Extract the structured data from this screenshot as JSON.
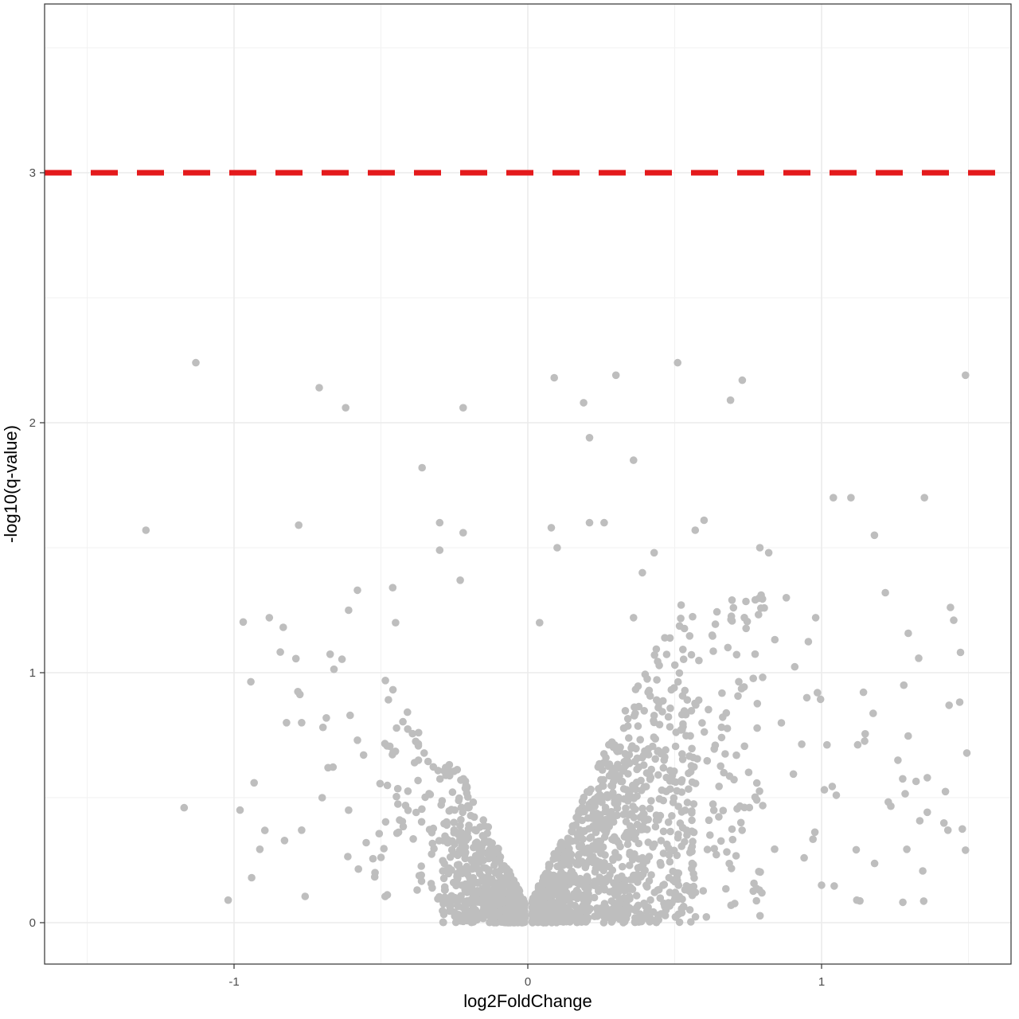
{
  "chart_data": {
    "type": "scatter",
    "title": "",
    "xlabel": "log2FoldChange",
    "ylabel": "-log10(q-value)",
    "xlim": [
      -1.65,
      1.65
    ],
    "ylim": [
      -0.16,
      3.5
    ],
    "x_ticks": [
      -1,
      0,
      1
    ],
    "x_tick_labels": [
      "-1",
      "0",
      "1"
    ],
    "y_ticks": [
      0,
      1,
      2,
      3
    ],
    "y_tick_labels": [
      "0",
      "1",
      "2",
      "3"
    ],
    "grid": true,
    "theme": "bw",
    "point_color": "#bebebe",
    "threshold_line": {
      "y": 3,
      "color": "#e41a1c",
      "style": "dashed"
    },
    "highlighted_points": [
      [
        -1.3,
        1.57
      ],
      [
        -1.13,
        2.24
      ],
      [
        -1.17,
        0.46
      ],
      [
        -1.02,
        0.09
      ],
      [
        -0.94,
        0.18
      ],
      [
        -0.88,
        1.22
      ],
      [
        -0.78,
        1.59
      ],
      [
        -0.77,
        0.8
      ],
      [
        -0.77,
        0.37
      ],
      [
        -0.71,
        2.14
      ],
      [
        -0.7,
        0.5
      ],
      [
        -0.68,
        0.62
      ],
      [
        -0.62,
        2.06
      ],
      [
        -0.61,
        1.25
      ],
      [
        -0.61,
        0.45
      ],
      [
        -0.58,
        1.33
      ],
      [
        -0.58,
        0.73
      ],
      [
        -0.55,
        0.32
      ],
      [
        -0.52,
        0.2
      ],
      [
        -0.46,
        1.34
      ],
      [
        -0.45,
        1.2
      ],
      [
        -0.36,
        1.82
      ],
      [
        -0.3,
        1.6
      ],
      [
        -0.22,
        2.06
      ],
      [
        -0.22,
        1.56
      ],
      [
        -0.3,
        1.49
      ],
      [
        -0.23,
        1.37
      ],
      [
        0.09,
        2.18
      ],
      [
        0.19,
        2.08
      ],
      [
        0.21,
        1.94
      ],
      [
        0.3,
        2.19
      ],
      [
        0.36,
        1.85
      ],
      [
        0.51,
        2.24
      ],
      [
        0.69,
        2.09
      ],
      [
        0.73,
        2.17
      ],
      [
        1.04,
        1.7
      ],
      [
        1.1,
        1.7
      ],
      [
        1.18,
        1.55
      ],
      [
        1.35,
        1.7
      ],
      [
        1.49,
        2.19
      ],
      [
        1.45,
        1.21
      ],
      [
        1.49,
        0.29
      ],
      [
        1.43,
        0.37
      ],
      [
        1.36,
        0.58
      ],
      [
        1.28,
        0.95
      ],
      [
        1.26,
        0.65
      ],
      [
        1.12,
        0.09
      ],
      [
        1.05,
        0.51
      ],
      [
        1.0,
        0.15
      ],
      [
        0.98,
        1.22
      ],
      [
        0.95,
        0.9
      ],
      [
        0.88,
        1.3
      ],
      [
        0.82,
        1.48
      ],
      [
        0.79,
        1.5
      ],
      [
        0.7,
        1.26
      ],
      [
        0.6,
        1.61
      ],
      [
        0.57,
        1.57
      ],
      [
        0.43,
        1.48
      ],
      [
        0.39,
        1.4
      ],
      [
        0.36,
        1.22
      ],
      [
        0.26,
        1.6
      ],
      [
        0.21,
        1.6
      ],
      [
        0.1,
        1.5
      ],
      [
        0.08,
        1.58
      ],
      [
        0.04,
        1.2
      ]
    ]
  }
}
